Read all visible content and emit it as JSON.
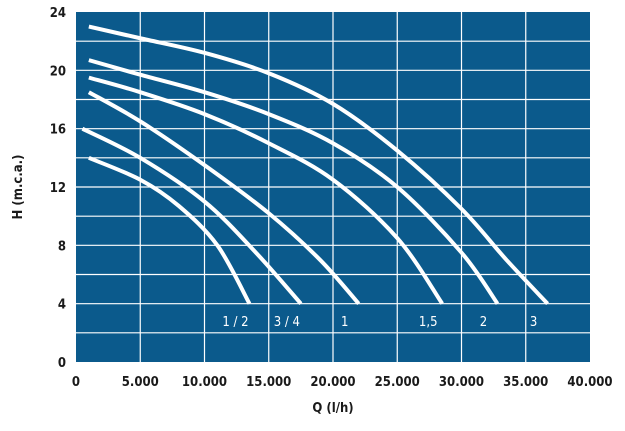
{
  "chart_data": {
    "type": "line",
    "title": "",
    "xlabel": "Q (l/h)",
    "ylabel": "H (m.c.a.)",
    "xlim": [
      0,
      40000
    ],
    "ylim": [
      0,
      24
    ],
    "x_ticks": [
      0,
      5000,
      10000,
      15000,
      20000,
      25000,
      30000,
      35000,
      40000
    ],
    "x_tick_labels": [
      "0",
      "5.000",
      "10.000",
      "15.000",
      "20.000",
      "25.000",
      "30.000",
      "35.000",
      "40.000"
    ],
    "y_ticks": [
      0,
      4,
      8,
      12,
      16,
      20,
      24
    ],
    "y_tick_labels": [
      "0",
      "4",
      "8",
      "12",
      "16",
      "20",
      "24"
    ],
    "grid": true,
    "colors": {
      "plot_background": "#0b5a8c",
      "grid": "#ffffff",
      "curves": "#ffffff",
      "text": "#1a1a1a"
    },
    "series": [
      {
        "name": "1 / 2",
        "points": [
          [
            1000,
            14.0
          ],
          [
            5000,
            12.5
          ],
          [
            8000,
            10.7
          ],
          [
            11000,
            8.0
          ],
          [
            13500,
            4.0
          ]
        ]
      },
      {
        "name": "3 / 4",
        "points": [
          [
            500,
            16.0
          ],
          [
            5000,
            14.0
          ],
          [
            10000,
            11.0
          ],
          [
            14000,
            7.5
          ],
          [
            17500,
            4.0
          ]
        ]
      },
      {
        "name": "1",
        "points": [
          [
            1000,
            18.5
          ],
          [
            5000,
            16.5
          ],
          [
            10000,
            13.5
          ],
          [
            15000,
            10.2
          ],
          [
            19000,
            7.0
          ],
          [
            22000,
            4.0
          ]
        ]
      },
      {
        "name": "1,5",
        "points": [
          [
            1000,
            19.5
          ],
          [
            5000,
            18.5
          ],
          [
            10000,
            17.0
          ],
          [
            15000,
            15.0
          ],
          [
            20000,
            12.5
          ],
          [
            25000,
            8.5
          ],
          [
            28500,
            4.0
          ]
        ]
      },
      {
        "name": "2",
        "points": [
          [
            1000,
            20.7
          ],
          [
            5000,
            19.7
          ],
          [
            10000,
            18.5
          ],
          [
            15000,
            17.0
          ],
          [
            20000,
            15.0
          ],
          [
            25000,
            12.0
          ],
          [
            30000,
            7.5
          ],
          [
            32800,
            4.0
          ]
        ]
      },
      {
        "name": "3",
        "points": [
          [
            1000,
            23.0
          ],
          [
            5000,
            22.2
          ],
          [
            10000,
            21.2
          ],
          [
            15000,
            19.8
          ],
          [
            20000,
            17.7
          ],
          [
            25000,
            14.5
          ],
          [
            30000,
            10.5
          ],
          [
            33500,
            7.0
          ],
          [
            36700,
            4.0
          ]
        ]
      }
    ],
    "curve_label_y": 2.8
  }
}
